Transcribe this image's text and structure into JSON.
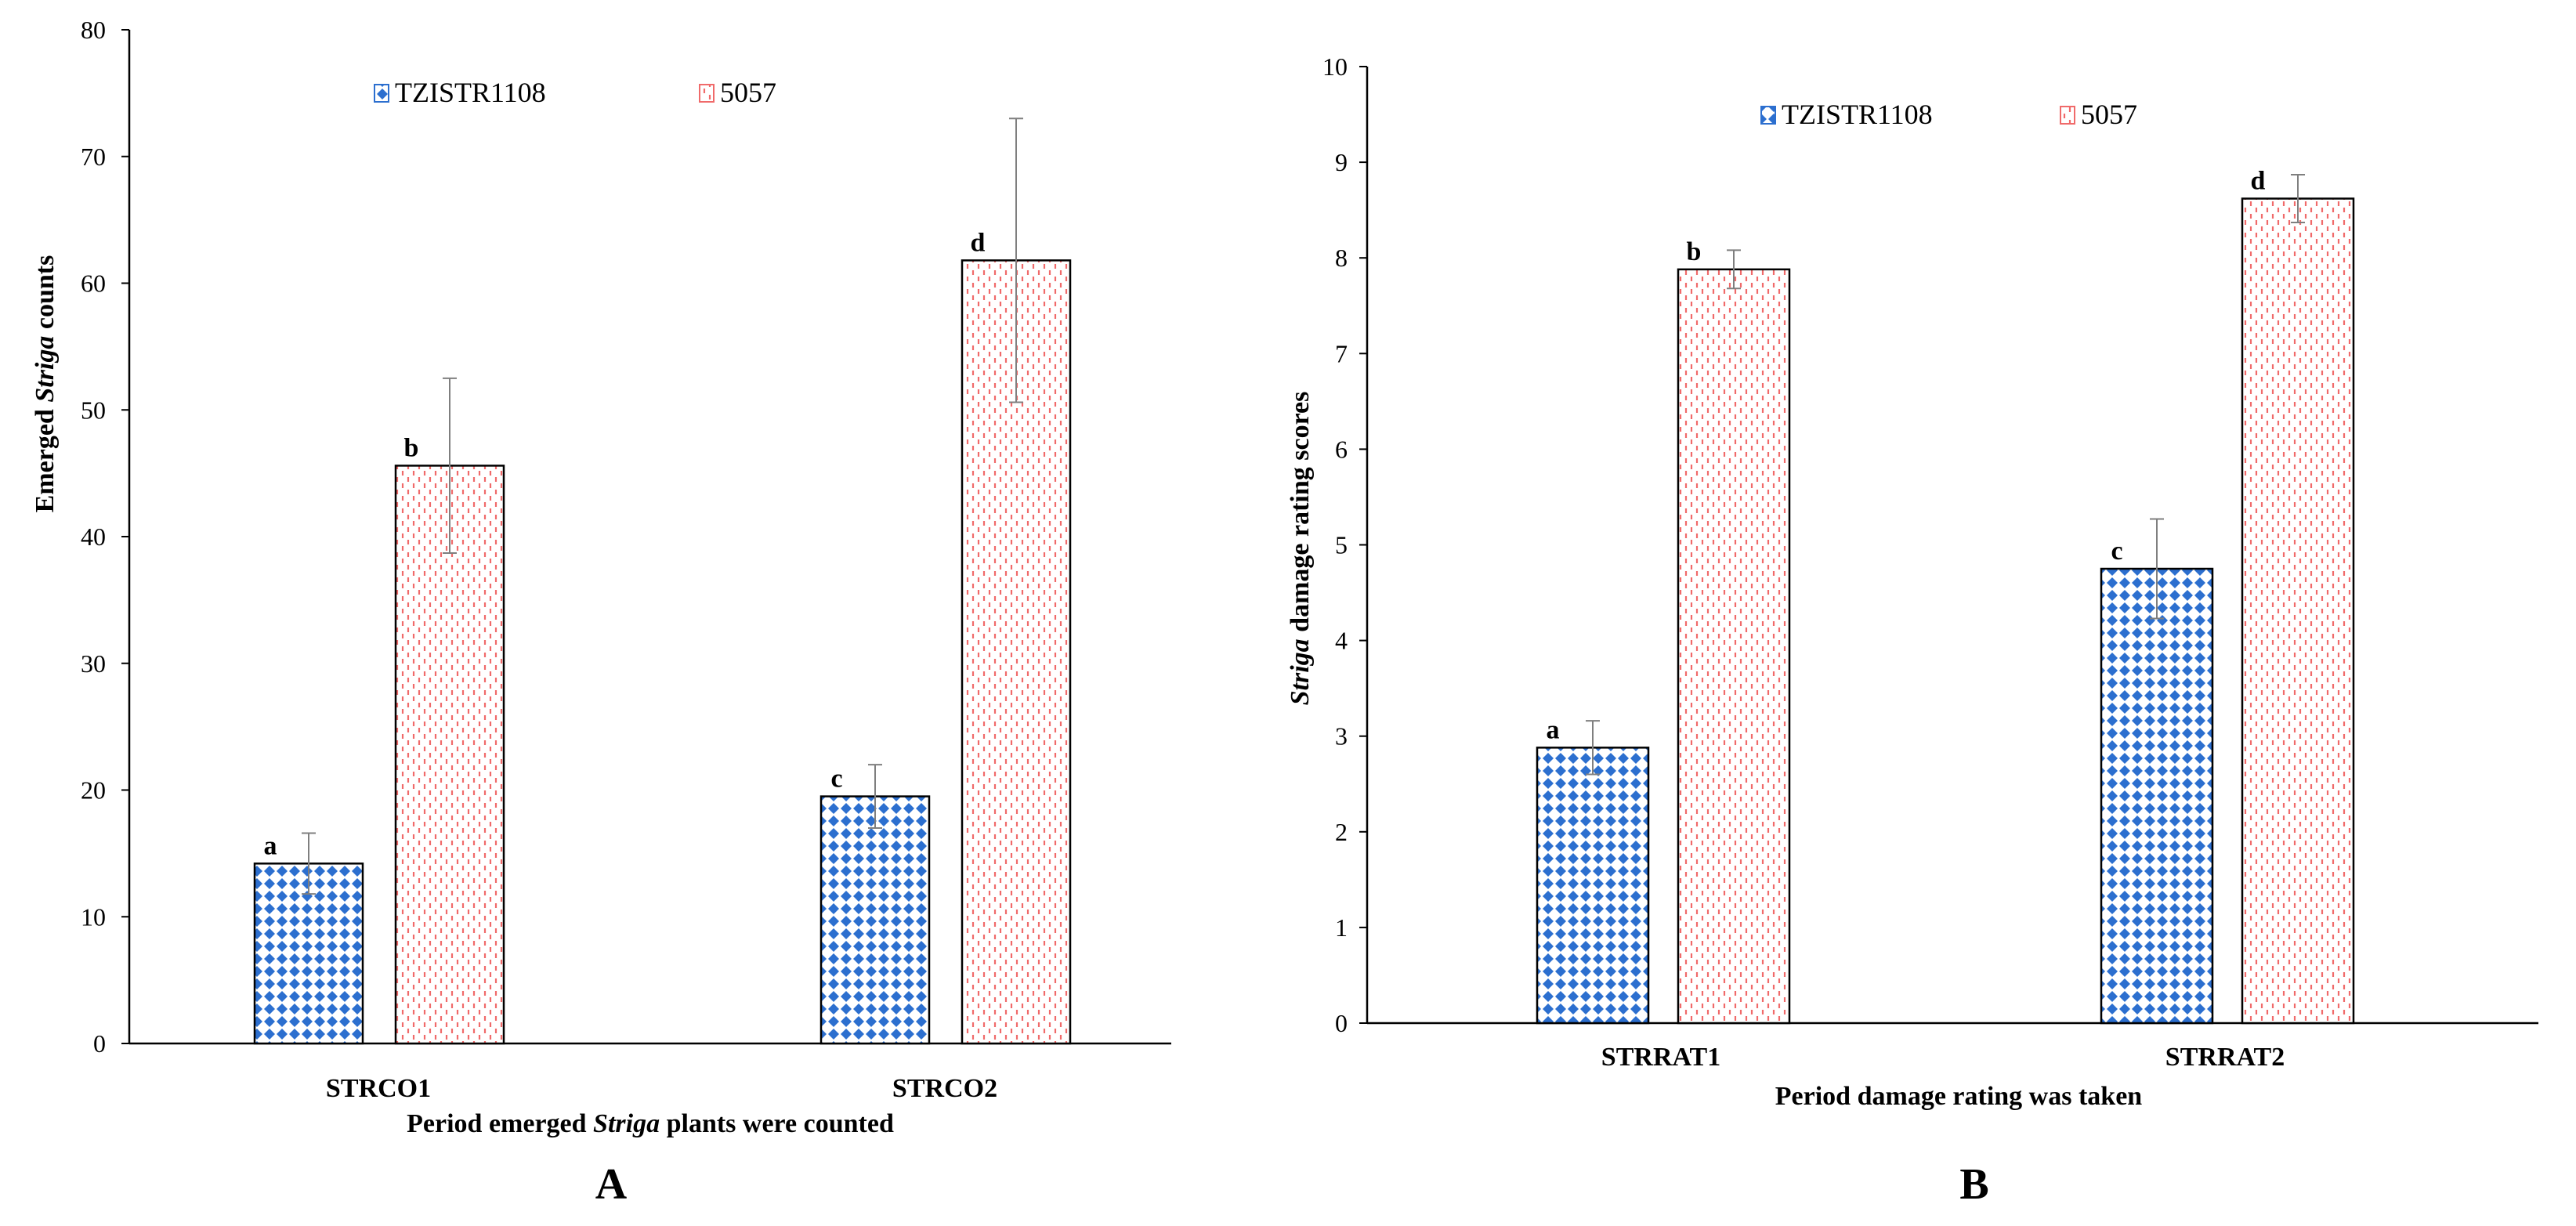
{
  "colors": {
    "series1": "#2c6fcf",
    "series2": "#f06a6a",
    "axis": "#000000",
    "errorbar": "#7f7f7f"
  },
  "chart_data": [
    {
      "panel": "A",
      "type": "bar",
      "categories": [
        "STRCO1",
        "STRCO2"
      ],
      "series": [
        {
          "name": "TZISTR1108",
          "values": [
            14.2,
            19.5
          ],
          "errors": [
            2.4,
            2.5
          ],
          "letters": [
            "a",
            "c"
          ]
        },
        {
          "name": "5057",
          "values": [
            45.6,
            61.8
          ],
          "errors": [
            6.9,
            11.2
          ],
          "letters": [
            "b",
            "d"
          ]
        }
      ],
      "ylim": [
        0,
        80
      ],
      "yticks": [
        0,
        10,
        20,
        30,
        40,
        50,
        60,
        70,
        80
      ],
      "ylabel_parts": {
        "pre": "Emerged ",
        "italic": "Striga",
        "post": " counts"
      },
      "xlabel_parts": {
        "pre": "Period emerged ",
        "italic": "Striga",
        "post": " plants were counted"
      },
      "grid": false,
      "legend": "top"
    },
    {
      "panel": "B",
      "type": "bar",
      "categories": [
        "STRRAT1",
        "STRRAT2"
      ],
      "series": [
        {
          "name": "TZISTR1108",
          "values": [
            2.88,
            4.75
          ],
          "errors": [
            0.28,
            0.52
          ],
          "letters": [
            "a",
            "c"
          ]
        },
        {
          "name": "5057",
          "values": [
            7.88,
            8.62
          ],
          "errors": [
            0.2,
            0.25
          ],
          "letters": [
            "b",
            "d"
          ]
        }
      ],
      "ylim": [
        0,
        10
      ],
      "yticks": [
        0,
        1,
        2,
        3,
        4,
        5,
        6,
        7,
        8,
        9,
        10
      ],
      "ylabel_parts": {
        "pre": "",
        "italic": "Striga",
        "post": " damage rating scores"
      },
      "xlabel_parts": {
        "pre": "Period damage rating was taken",
        "italic": "",
        "post": ""
      },
      "grid": false,
      "legend": "top"
    }
  ]
}
